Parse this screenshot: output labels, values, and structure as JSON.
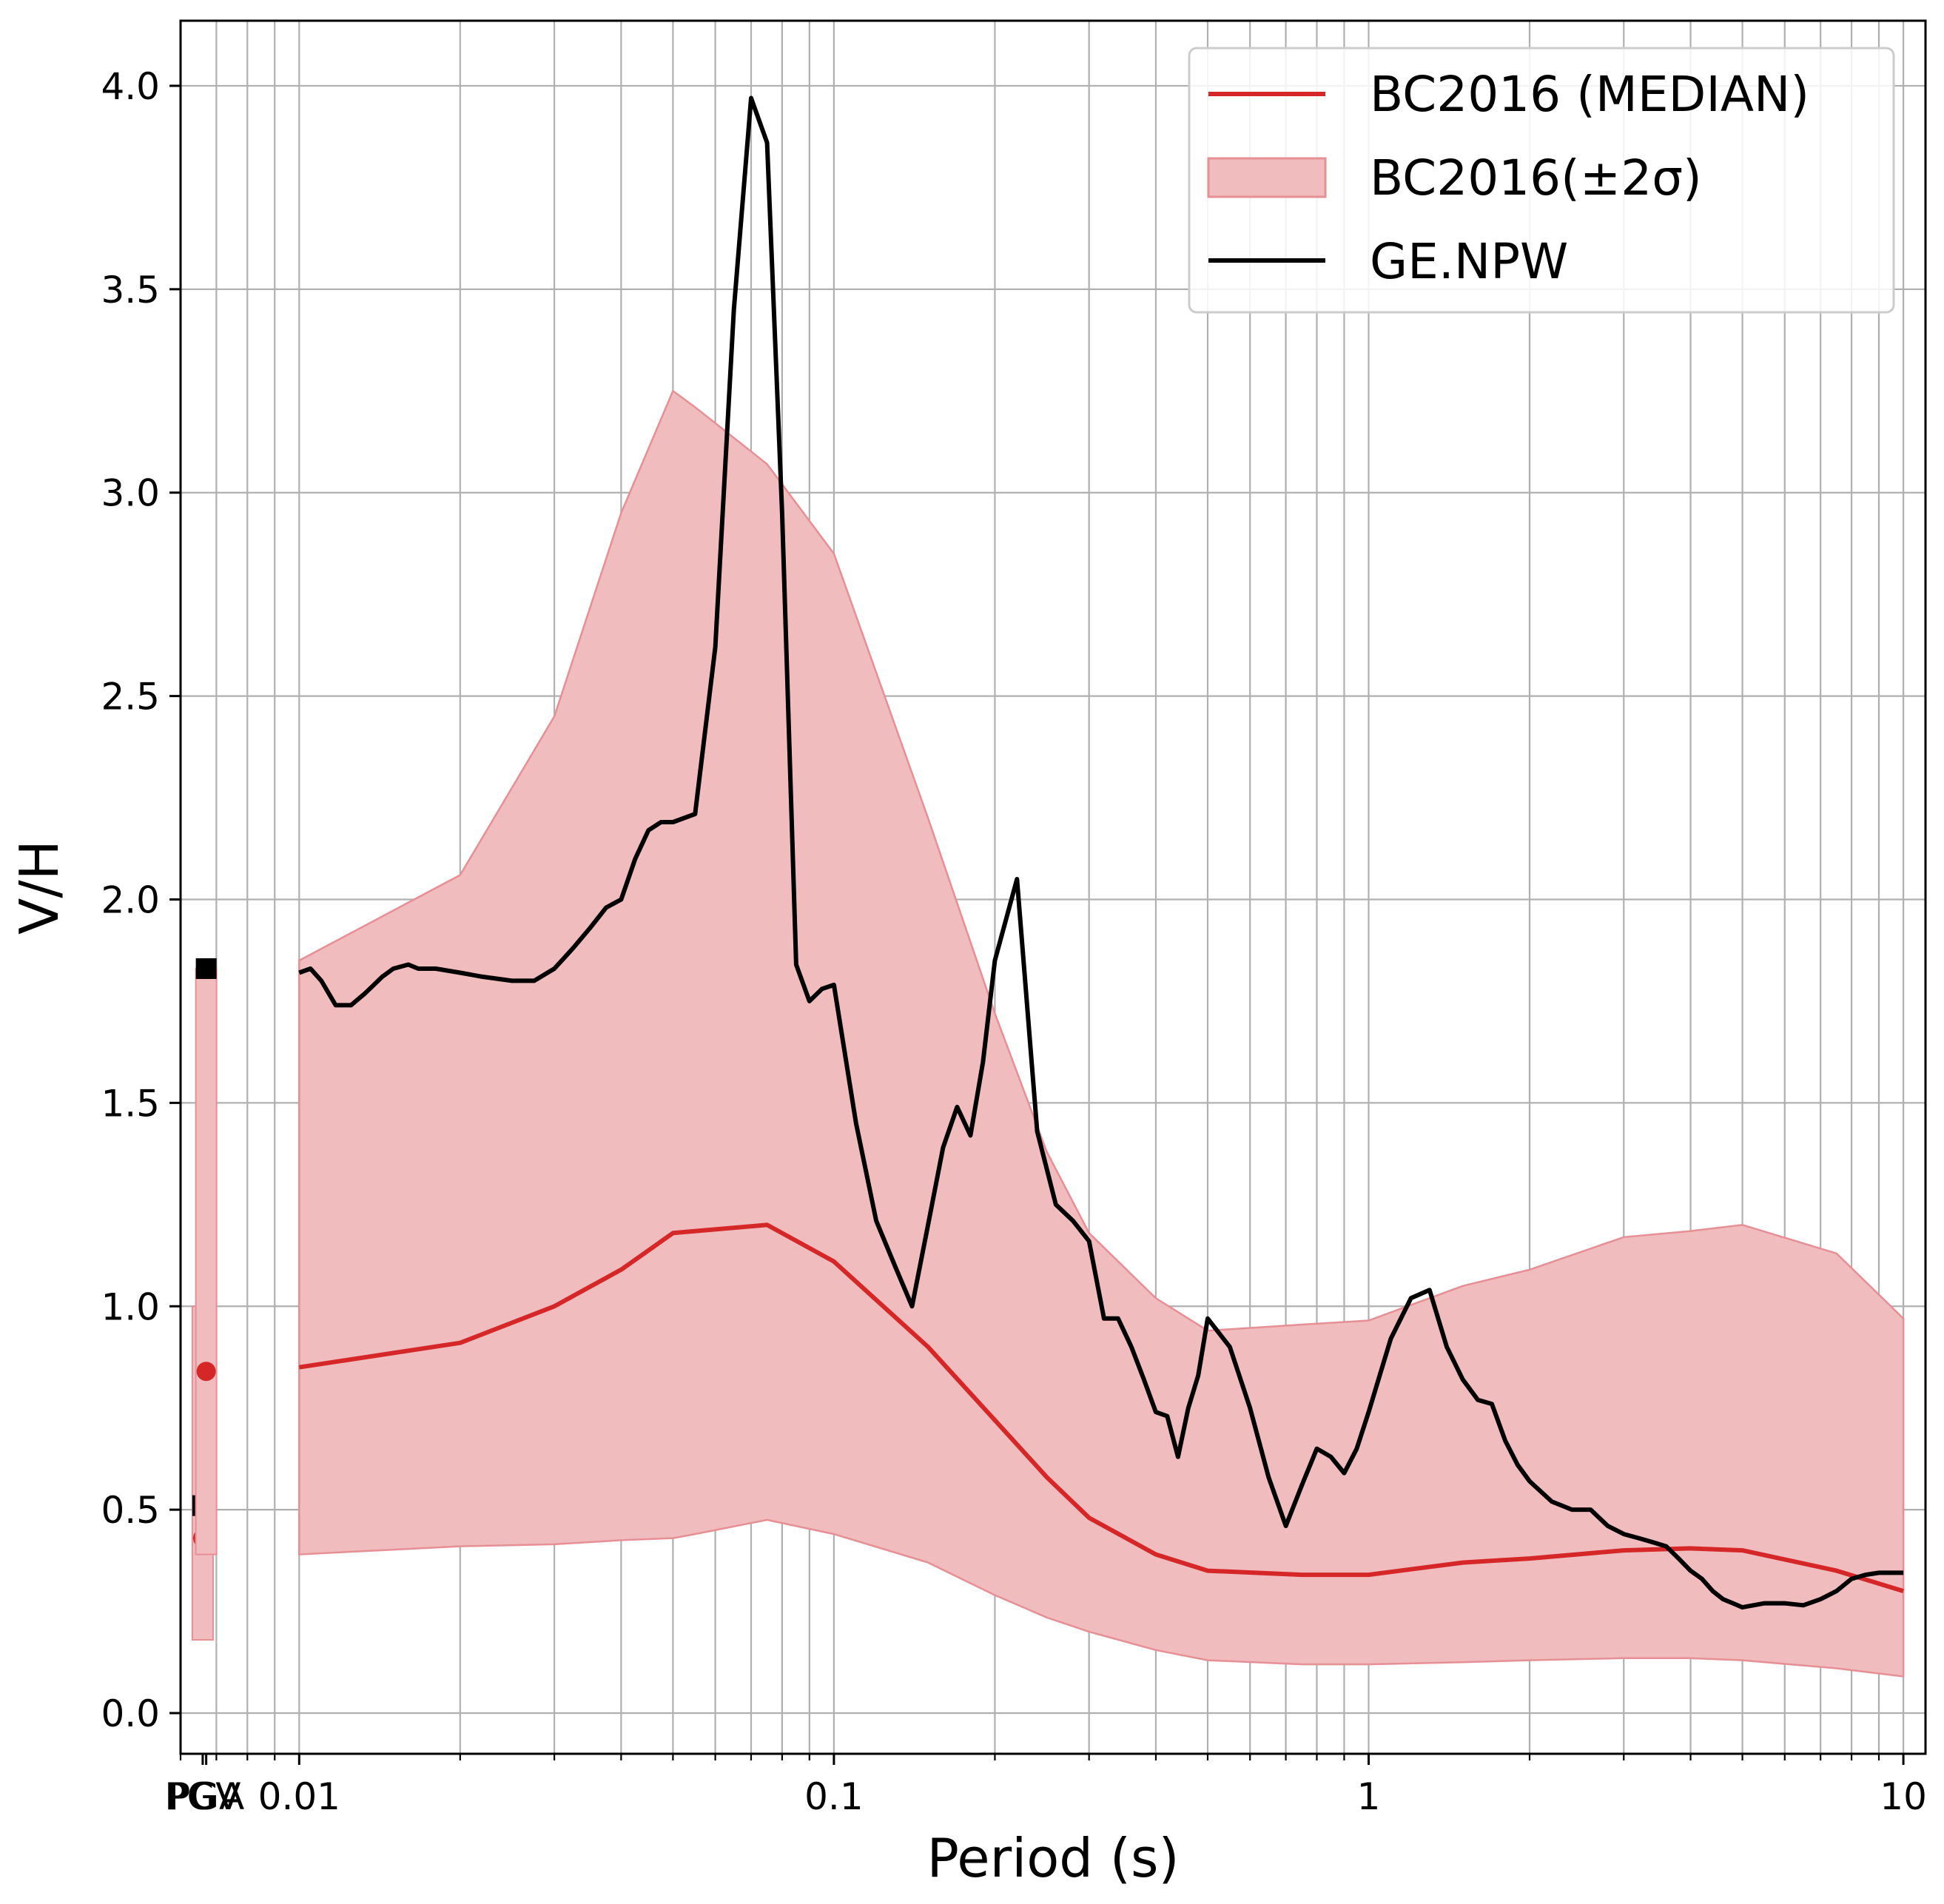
{
  "chart_data": {
    "type": "line",
    "title": "",
    "xlabel": "Period (s)",
    "ylabel": "V/H",
    "xscale": "log",
    "xlim": [
      0.006,
      11
    ],
    "ylim": [
      -0.1,
      4.16
    ],
    "grid": true,
    "legend_position": "top-right",
    "x_ticks": [
      {
        "value": 0.01,
        "label": "0.01"
      },
      {
        "value": 0.1,
        "label": "0.1"
      },
      {
        "value": 1,
        "label": "1"
      },
      {
        "value": 10,
        "label": "10"
      }
    ],
    "y_ticks": [
      {
        "value": 0.0,
        "label": "0.0"
      },
      {
        "value": 0.5,
        "label": "0.5"
      },
      {
        "value": 1.0,
        "label": "1.0"
      },
      {
        "value": 1.5,
        "label": "1.5"
      },
      {
        "value": 2.0,
        "label": "2.0"
      },
      {
        "value": 2.5,
        "label": "2.5"
      },
      {
        "value": 3.0,
        "label": "3.0"
      },
      {
        "value": 3.5,
        "label": "3.5"
      },
      {
        "value": 4.0,
        "label": "4.0"
      }
    ],
    "special_points": [
      {
        "label": "PGV",
        "x": 0.0066,
        "median": 0.43,
        "lower": 0.18,
        "upper": 1.0,
        "observed": 0.51
      },
      {
        "label": "PGA",
        "x": 0.0067,
        "median": 0.84,
        "lower": 0.39,
        "upper": 1.83,
        "observed": 1.83
      }
    ],
    "series": [
      {
        "name": "BC2016 (MEDIAN)",
        "color": "#d62728",
        "x": [
          0.01,
          0.02,
          0.03,
          0.04,
          0.05,
          0.075,
          0.1,
          0.15,
          0.2,
          0.25,
          0.3,
          0.4,
          0.5,
          0.75,
          1,
          1.5,
          2,
          3,
          4,
          5,
          7.5,
          10
        ],
        "y": [
          0.85,
          0.91,
          1.0,
          1.09,
          1.18,
          1.2,
          1.11,
          0.9,
          0.72,
          0.58,
          0.48,
          0.39,
          0.35,
          0.34,
          0.34,
          0.37,
          0.38,
          0.4,
          0.405,
          0.4,
          0.35,
          0.3
        ]
      },
      {
        "name": "BC2016(±2σ)",
        "color": "#f0bcbe",
        "edge_color": "#e68f94",
        "x": [
          0.01,
          0.02,
          0.03,
          0.04,
          0.05,
          0.055,
          0.075,
          0.1,
          0.15,
          0.2,
          0.25,
          0.3,
          0.4,
          0.5,
          0.75,
          1,
          1.5,
          2,
          3,
          4,
          5,
          7.5,
          10
        ],
        "lower": [
          0.39,
          0.41,
          0.415,
          0.425,
          0.43,
          0.44,
          0.475,
          0.44,
          0.37,
          0.29,
          0.235,
          0.2,
          0.155,
          0.13,
          0.12,
          0.12,
          0.125,
          0.13,
          0.135,
          0.135,
          0.13,
          0.11,
          0.09
        ],
        "upper": [
          1.85,
          2.06,
          2.45,
          2.95,
          3.25,
          3.21,
          3.07,
          2.85,
          2.2,
          1.72,
          1.38,
          1.18,
          1.02,
          0.94,
          0.955,
          0.965,
          1.05,
          1.09,
          1.17,
          1.185,
          1.2,
          1.13,
          0.97
        ]
      },
      {
        "name": "GE.NPW",
        "color": "#000000",
        "x": [
          0.01,
          0.0105,
          0.011,
          0.0117,
          0.0125,
          0.0133,
          0.0143,
          0.015,
          0.016,
          0.0167,
          0.018,
          0.02,
          0.022,
          0.025,
          0.0275,
          0.03,
          0.0325,
          0.035,
          0.0375,
          0.04,
          0.0425,
          0.045,
          0.0475,
          0.05,
          0.055,
          0.06,
          0.065,
          0.07,
          0.075,
          0.08,
          0.085,
          0.09,
          0.095,
          0.1,
          0.11,
          0.12,
          0.13,
          0.14,
          0.15,
          0.16,
          0.17,
          0.18,
          0.19,
          0.2,
          0.22,
          0.24,
          0.26,
          0.28,
          0.3,
          0.32,
          0.34,
          0.36,
          0.38,
          0.4,
          0.42,
          0.44,
          0.46,
          0.48,
          0.5,
          0.55,
          0.6,
          0.65,
          0.7,
          0.75,
          0.8,
          0.85,
          0.9,
          0.95,
          1.0,
          1.1,
          1.2,
          1.3,
          1.4,
          1.5,
          1.6,
          1.7,
          1.8,
          1.9,
          2.0,
          2.2,
          2.4,
          2.6,
          2.8,
          3.0,
          3.2,
          3.4,
          3.6,
          3.8,
          4.0,
          4.2,
          4.4,
          4.6,
          4.8,
          5.0,
          5.5,
          6.0,
          6.5,
          7.0,
          7.5,
          8.0,
          8.5,
          9.0,
          9.5,
          10.0
        ],
        "y": [
          1.82,
          1.83,
          1.8,
          1.74,
          1.74,
          1.77,
          1.81,
          1.83,
          1.84,
          1.83,
          1.83,
          1.82,
          1.81,
          1.8,
          1.8,
          1.83,
          1.88,
          1.93,
          1.98,
          2.0,
          2.1,
          2.17,
          2.19,
          2.19,
          2.21,
          2.62,
          3.45,
          3.97,
          3.86,
          2.95,
          1.84,
          1.75,
          1.78,
          1.79,
          1.45,
          1.21,
          1.1,
          1.0,
          1.2,
          1.39,
          1.49,
          1.42,
          1.6,
          1.85,
          2.05,
          1.43,
          1.25,
          1.21,
          1.16,
          0.97,
          0.97,
          0.9,
          0.82,
          0.74,
          0.73,
          0.63,
          0.75,
          0.83,
          0.97,
          0.9,
          0.75,
          0.58,
          0.46,
          0.56,
          0.65,
          0.63,
          0.59,
          0.65,
          0.74,
          0.92,
          1.02,
          1.04,
          0.9,
          0.82,
          0.77,
          0.76,
          0.67,
          0.61,
          0.57,
          0.52,
          0.5,
          0.5,
          0.46,
          0.44,
          0.43,
          0.42,
          0.41,
          0.38,
          0.35,
          0.33,
          0.3,
          0.28,
          0.27,
          0.26,
          0.27,
          0.27,
          0.265,
          0.28,
          0.3,
          0.33,
          0.34,
          0.345,
          0.345,
          0.345
        ]
      }
    ]
  }
}
